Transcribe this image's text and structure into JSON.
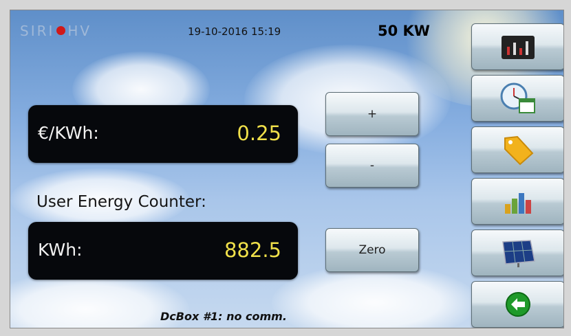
{
  "header": {
    "brand_left": "SIRI",
    "brand_right": "HV",
    "datetime": "19-10-2016 15:19",
    "power": "50 KW"
  },
  "price": {
    "label": "€/KWh:",
    "value": "0.25"
  },
  "counter": {
    "title": "User Energy Counter:",
    "label": "KWh:",
    "value": "882.5"
  },
  "buttons": {
    "plus": "+",
    "minus": "-",
    "zero": "Zero"
  },
  "status": "DcBox #1: no comm."
}
